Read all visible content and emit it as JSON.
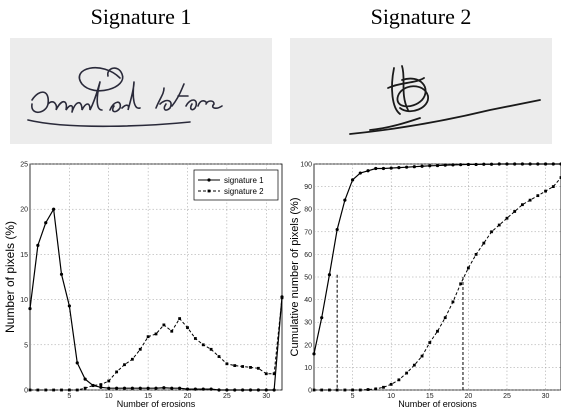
{
  "signatures": [
    {
      "title": "Signature 1",
      "ink_color": "#2a2a3a",
      "paper_color": "#ececec"
    },
    {
      "title": "Signature 2",
      "ink_color": "#1a1a1a",
      "paper_color": "#ececec"
    }
  ],
  "chart_data": [
    {
      "type": "line",
      "title": "",
      "xlabel": "Number of erosions",
      "ylabel": "Number of pixels (%)",
      "xlim": [
        0,
        32
      ],
      "ylim": [
        0,
        25
      ],
      "xticks": [
        5,
        10,
        15,
        20,
        25,
        30
      ],
      "yticks": [
        0,
        5,
        10,
        15,
        20,
        25
      ],
      "grid": true,
      "legend": "top-right",
      "x": [
        0,
        1,
        2,
        3,
        4,
        5,
        6,
        7,
        8,
        9,
        10,
        11,
        12,
        13,
        14,
        15,
        16,
        17,
        18,
        19,
        20,
        21,
        22,
        23,
        24,
        25,
        26,
        27,
        28,
        29,
        30,
        31,
        32
      ],
      "series": [
        {
          "name": "signature 1",
          "style": "solid",
          "values": [
            9,
            16,
            18.5,
            20,
            12.8,
            9.3,
            3,
            1.2,
            0.5,
            0.3,
            0.2,
            0.2,
            0.2,
            0.2,
            0.2,
            0.2,
            0.2,
            0.25,
            0.2,
            0.2,
            0.1,
            0.1,
            0.1,
            0.1,
            0,
            0,
            0,
            0,
            0,
            0,
            0,
            0,
            10.3
          ]
        },
        {
          "name": "signature 2",
          "style": "dashed",
          "values": [
            0,
            0,
            0,
            0,
            0,
            0,
            0,
            0.2,
            0.5,
            0.6,
            1,
            2,
            2.8,
            3.4,
            4.5,
            5.9,
            6.2,
            7.2,
            6.5,
            7.9,
            6.9,
            5.7,
            5,
            4.5,
            3.7,
            2.9,
            2.7,
            2.6,
            2.5,
            2.4,
            1.8,
            1.8,
            10.2
          ]
        }
      ]
    },
    {
      "type": "line",
      "title": "",
      "xlabel": "Number of erosions",
      "ylabel": "Cumulative number of pixels (%)",
      "xlim": [
        0,
        32
      ],
      "ylim": [
        0,
        100
      ],
      "xticks": [
        5,
        10,
        15,
        20,
        25,
        30
      ],
      "yticks": [
        0,
        10,
        20,
        30,
        40,
        50,
        60,
        70,
        80,
        90,
        100
      ],
      "grid": true,
      "legend": "none",
      "x": [
        0,
        1,
        2,
        3,
        4,
        5,
        6,
        7,
        8,
        9,
        10,
        11,
        12,
        13,
        14,
        15,
        16,
        17,
        18,
        19,
        20,
        21,
        22,
        23,
        24,
        25,
        26,
        27,
        28,
        29,
        30,
        31,
        32
      ],
      "series": [
        {
          "style": "solid",
          "values": [
            16,
            32,
            51,
            71,
            84,
            93,
            96,
            97,
            98,
            98,
            98.2,
            98.4,
            98.6,
            98.8,
            99,
            99.2,
            99.3,
            99.5,
            99.6,
            99.7,
            99.8,
            99.8,
            99.9,
            99.9,
            100,
            100,
            100,
            100,
            100,
            100,
            100,
            100,
            100
          ]
        },
        {
          "style": "dashed",
          "values": [
            0,
            0,
            0,
            0,
            0,
            0,
            0,
            0.2,
            0.5,
            1.2,
            2.5,
            4.5,
            7.5,
            11,
            15,
            21,
            26,
            32,
            39,
            47,
            54,
            60,
            65,
            70,
            73,
            76,
            79,
            82,
            84,
            86,
            88,
            90,
            94
          ]
        }
      ],
      "reference_lines": [
        {
          "x": 3,
          "y": 51
        },
        {
          "x": 19.3,
          "y": 50
        }
      ]
    }
  ]
}
